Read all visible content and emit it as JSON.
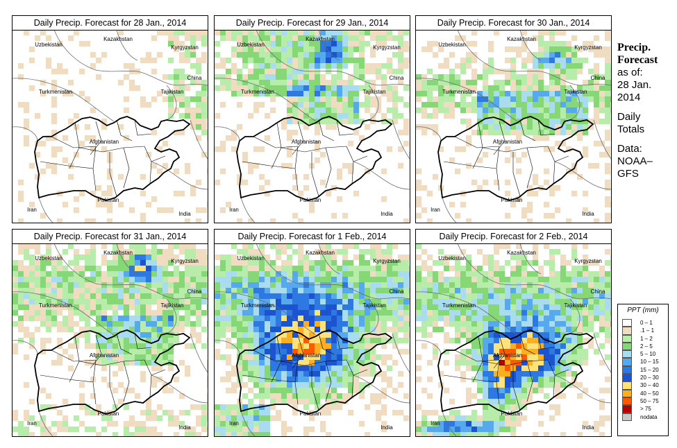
{
  "panels": [
    {
      "title": "Daily Precip. Forecast for  28 Jan., 2014",
      "day": 0
    },
    {
      "title": "Daily Precip. Forecast for  29 Jan., 2014",
      "day": 1
    },
    {
      "title": "Daily Precip. Forecast for  30 Jan., 2014",
      "day": 2
    },
    {
      "title": "Daily Precip. Forecast for  31 Jan., 2014",
      "day": 3
    },
    {
      "title": "Daily Precip. Forecast for  1 Feb., 2014",
      "day": 4
    },
    {
      "title": "Daily Precip. Forecast for  2 Feb., 2014",
      "day": 5
    }
  ],
  "map_labels": {
    "uzbekistan": "Uzbekistan",
    "kazakhstan": "Kazakhstan",
    "kyrgyzstan": "Kyrgyzstan",
    "china": "China",
    "tajikistan": "Tajikistan",
    "turkmenistan": "Turkmenistan",
    "afghanistan": "Afghanistan",
    "pakistan": "Pakistan",
    "iran": "Iran",
    "india": "India"
  },
  "side": {
    "title1": "Precip.",
    "title2": "Forecast",
    "asof": "as of:",
    "date1": "28 Jan.",
    "date2": "2014",
    "daily": "Daily",
    "totals": "Totals",
    "data": "Data:",
    "source1": "NOAA–",
    "source2": "GFS"
  },
  "legend": {
    "title": "PPT (mm)",
    "items": [
      {
        "label": "0 – 1",
        "color": "#ffffff"
      },
      {
        "label": ".1 – 1",
        "color": "#f0dcc0"
      },
      {
        "label": "1 – 2",
        "color": "#b8ecaa"
      },
      {
        "label": "2 – 5",
        "color": "#86d877"
      },
      {
        "label": "5 – 10",
        "color": "#a9dcef"
      },
      {
        "label": "10 – 15",
        "color": "#55a9ec"
      },
      {
        "label": "15 – 20",
        "color": "#2d78e1"
      },
      {
        "label": "20 – 30",
        "color": "#1c54cf"
      },
      {
        "label": "30 – 40",
        "color": "#ffe27a"
      },
      {
        "label": "40 – 50",
        "color": "#ffae1e"
      },
      {
        "label": "50 – 75",
        "color": "#ff5a00"
      },
      {
        "label": "> 75",
        "color": "#b40000"
      },
      {
        "label": "nodata",
        "color": "#c8c8c8"
      }
    ]
  }
}
